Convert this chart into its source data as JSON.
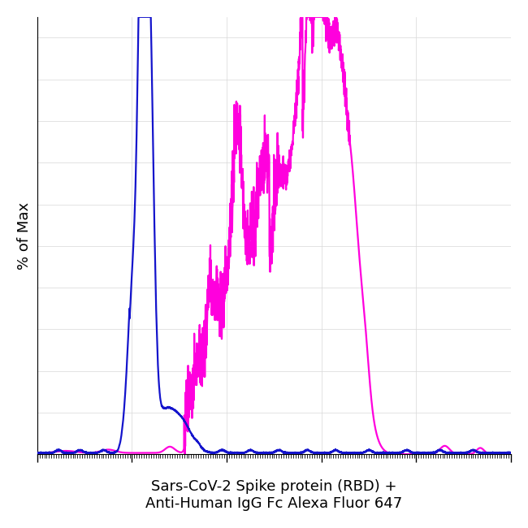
{
  "title": "",
  "xlabel": "Sars-CoV-2 Spike protein (RBD) +\nAnti-Human IgG Fc Alexa Fluor 647",
  "ylabel": "% of Max",
  "xlabel_fontsize": 13,
  "ylabel_fontsize": 13,
  "blue_color": "#1414cc",
  "magenta_color": "#ff00dd",
  "background_color": "#ffffff",
  "plot_bg_color": "#ffffff",
  "linewidth": 1.6,
  "figsize": [
    6.5,
    6.5
  ],
  "dpi": 100,
  "xlim": [
    0,
    1000
  ],
  "ylim": [
    0,
    105
  ]
}
